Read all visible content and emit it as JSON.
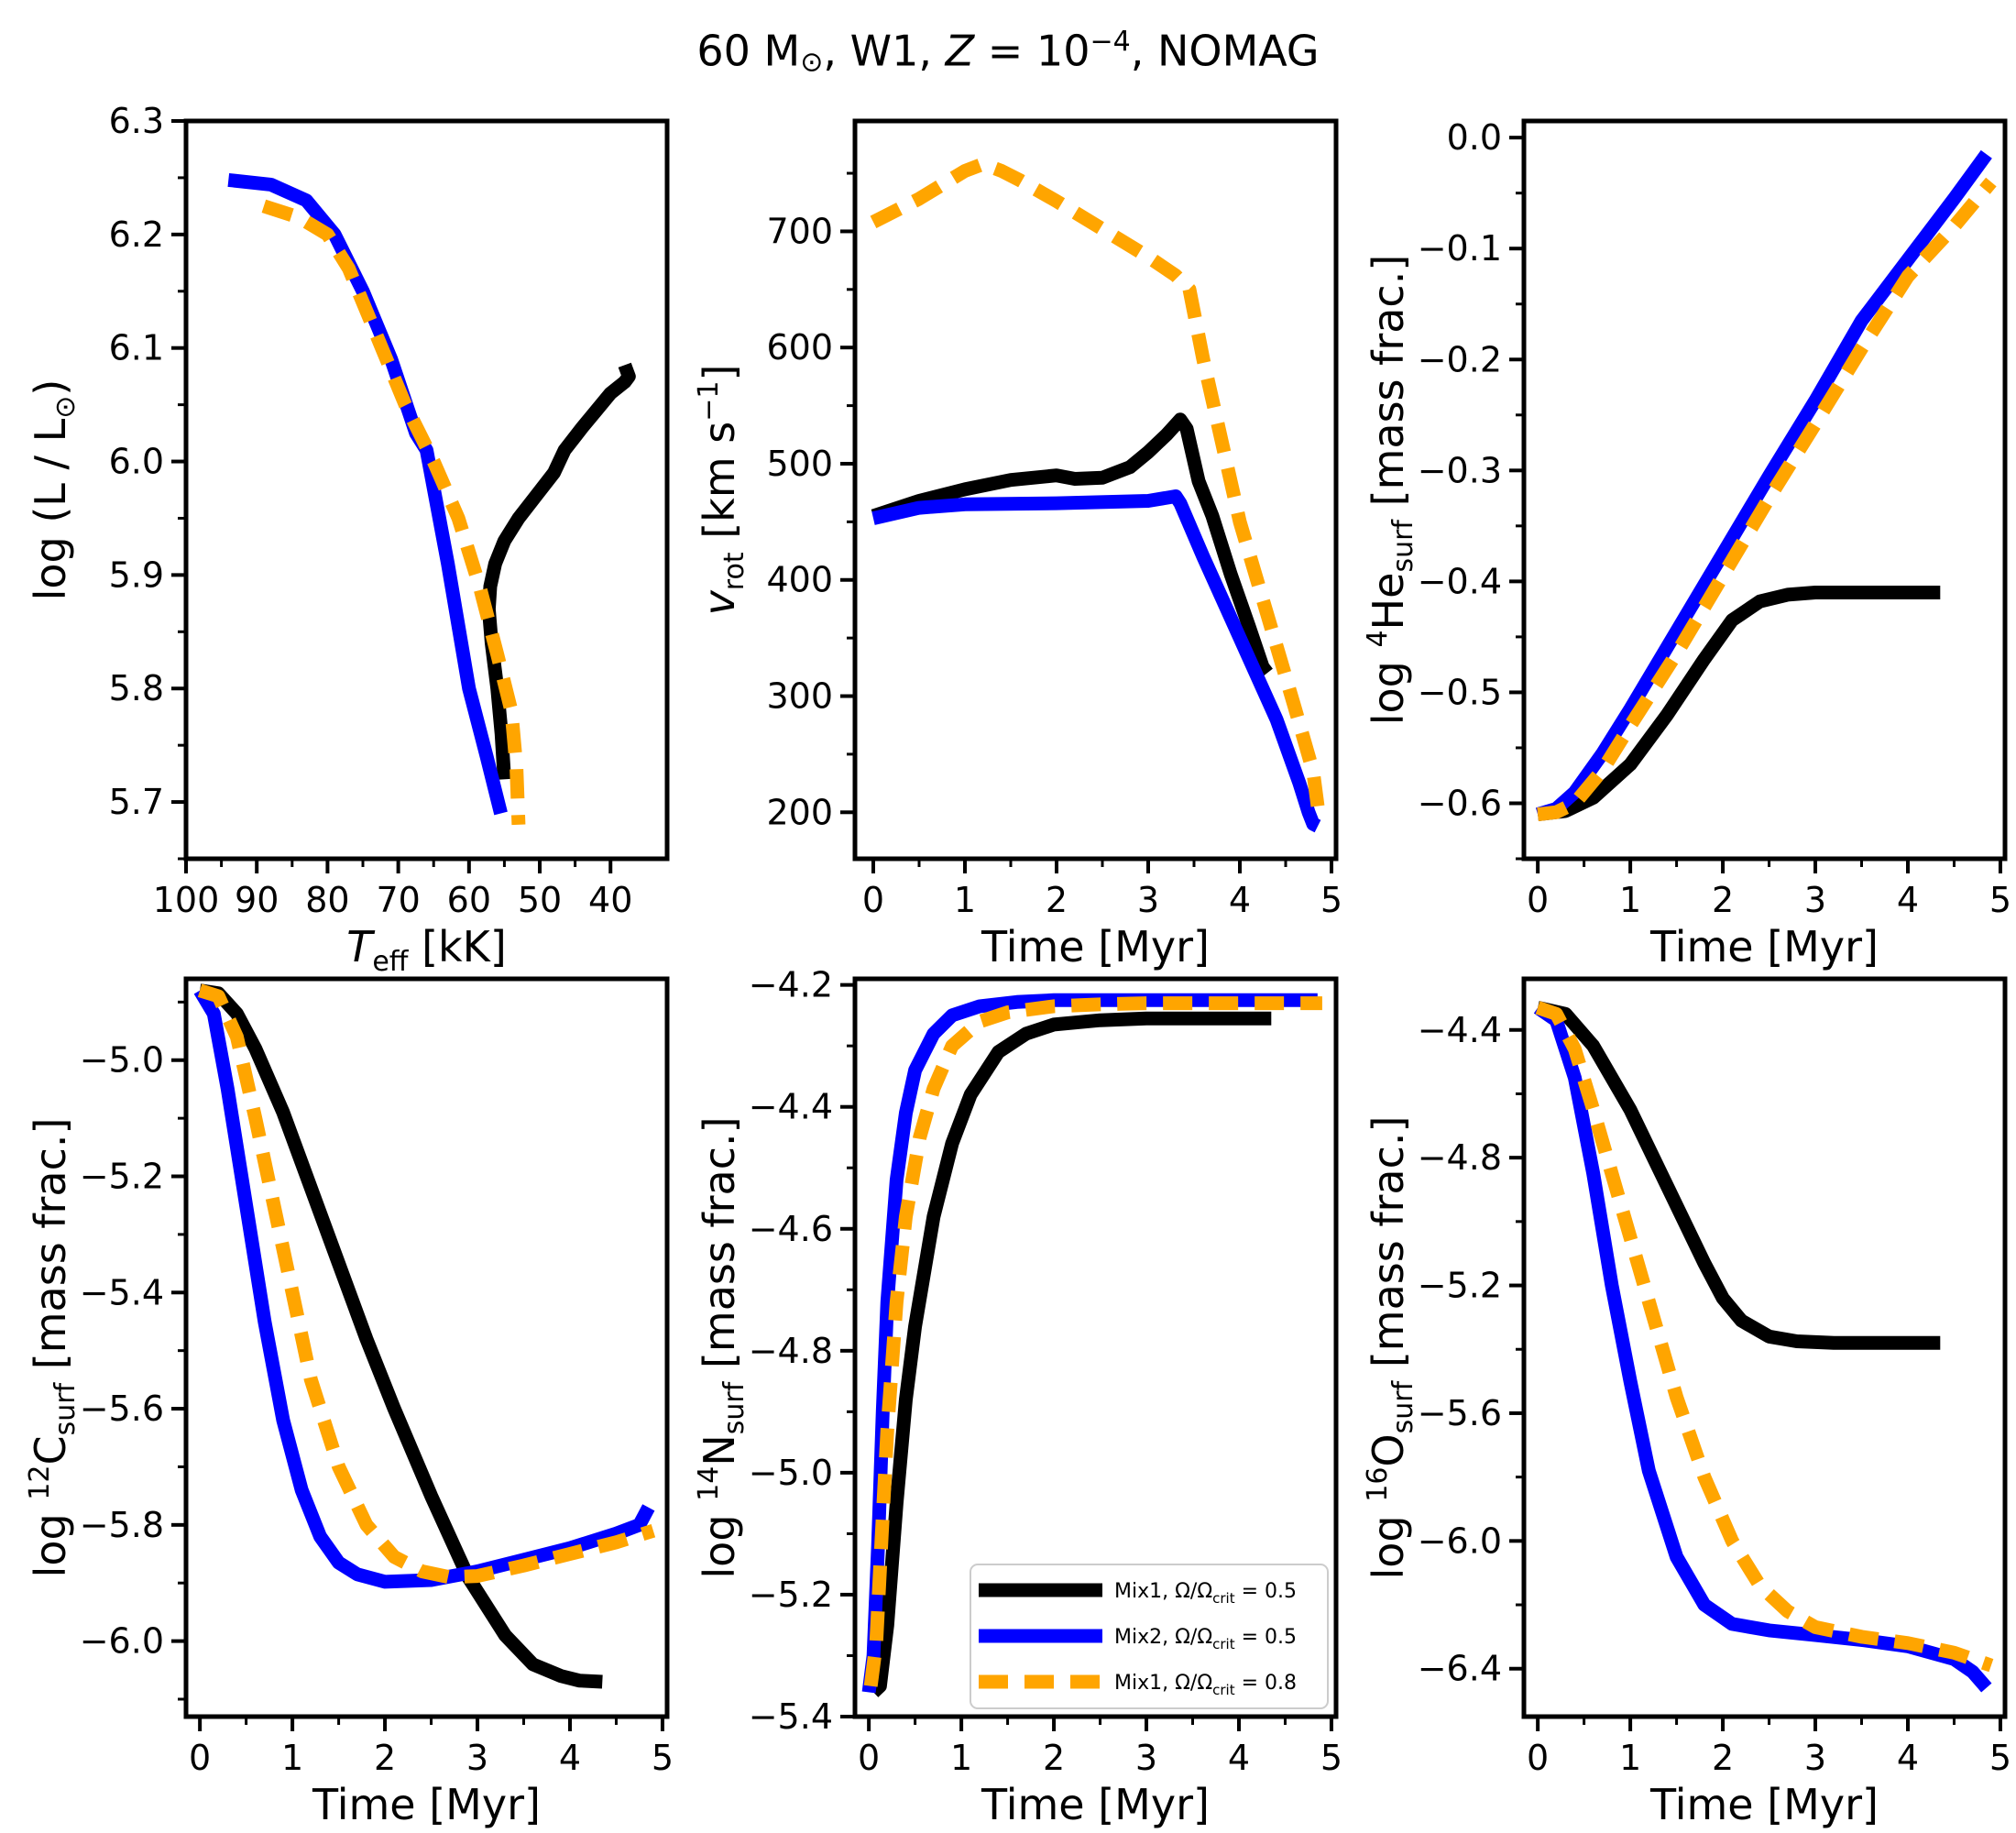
{
  "figure": {
    "title": {
      "text": "60 M",
      "msun": "⊙",
      "rest": ", W1, ",
      "zvar": "Z",
      "zval": " = 10",
      "zexp": "−4",
      "tail": ", NOMAG"
    }
  },
  "colors": {
    "mix1_05": "#000000",
    "mix2_05": "#0000ff",
    "mix1_08": "#ffa500"
  },
  "legend": {
    "placement": "lower-right (panel 5)",
    "entries": [
      {
        "key": "mix1_05",
        "label": "Mix1, Ω/Ω",
        "sub": "crit",
        "tail": " = 0.5",
        "style": "solid"
      },
      {
        "key": "mix2_05",
        "label": "Mix2, Ω/Ω",
        "sub": "crit",
        "tail": " = 0.5",
        "style": "solid"
      },
      {
        "key": "mix1_08",
        "label": "Mix1, Ω/Ω",
        "sub": "crit",
        "tail": " = 0.8",
        "style": "dashed"
      }
    ]
  },
  "chart_data": [
    {
      "type": "line",
      "id": "hrd",
      "xlabel": {
        "main": "T",
        "sub": "eff",
        "tail": " [kK]"
      },
      "ylabel": {
        "main": "log (L / L",
        "sub": "⊙",
        "tail": ")"
      },
      "xlim": [
        100,
        32
      ],
      "ylim": [
        5.65,
        6.3
      ],
      "xticks": [
        100,
        90,
        80,
        70,
        60,
        50,
        40
      ],
      "yticks": [
        5.7,
        5.8,
        5.9,
        6.0,
        6.1,
        6.2,
        6.3
      ],
      "yfmt": 1,
      "series": [
        {
          "key": "mix1_05",
          "x": [
            55.0,
            55.4,
            56.0,
            56.8,
            57.2,
            57.0,
            56.3,
            55.0,
            53.0,
            50.5,
            48.0,
            46.5,
            44.0,
            42.0,
            40.0,
            38.0,
            37.4,
            38.0
          ],
          "y": [
            5.72,
            5.76,
            5.8,
            5.84,
            5.87,
            5.89,
            5.91,
            5.93,
            5.95,
            5.97,
            5.99,
            6.01,
            6.03,
            6.045,
            6.06,
            6.07,
            6.075,
            6.085
          ]
        },
        {
          "key": "mix2_05",
          "x": [
            94.0,
            88.0,
            83.0,
            79.0,
            75.0,
            71.0,
            67.5,
            66.0,
            63.0,
            60.0,
            57.5,
            55.5
          ],
          "y": [
            6.248,
            6.244,
            6.23,
            6.2,
            6.15,
            6.09,
            6.025,
            6.01,
            5.91,
            5.8,
            5.74,
            5.69
          ]
        },
        {
          "key": "mix1_08",
          "x": [
            89.0,
            84.0,
            80.0,
            77.0,
            73.0,
            69.0,
            65.0,
            61.5,
            58.5,
            56.0,
            54.0,
            53.3,
            53.0
          ],
          "y": [
            6.225,
            6.215,
            6.2,
            6.17,
            6.11,
            6.05,
            6.0,
            5.95,
            5.89,
            5.83,
            5.78,
            5.73,
            5.68
          ]
        }
      ]
    },
    {
      "type": "line",
      "id": "vrot",
      "xlabel": {
        "main": "Time [Myr]"
      },
      "ylabel": {
        "main": "v",
        "sub": "rot",
        "tail": " [km s",
        "sup": "−1",
        "tail2": "]"
      },
      "xlim": [
        -0.2,
        5.05
      ],
      "ylim": [
        160,
        795
      ],
      "xticks": [
        0,
        1,
        2,
        3,
        4,
        5
      ],
      "yticks": [
        200,
        300,
        400,
        500,
        600,
        700
      ],
      "yfmt": 0,
      "series": [
        {
          "key": "mix1_05",
          "x": [
            0,
            0.5,
            1.0,
            1.5,
            2.0,
            2.2,
            2.5,
            2.8,
            3.0,
            3.2,
            3.35,
            3.42,
            3.55,
            3.7,
            3.9,
            4.1,
            4.25,
            4.3
          ],
          "y": [
            455,
            468,
            478,
            486,
            490,
            487,
            488,
            497,
            510,
            525,
            538,
            530,
            485,
            455,
            405,
            360,
            325,
            320
          ]
        },
        {
          "key": "mix2_05",
          "x": [
            0,
            0.5,
            1.0,
            2.0,
            3.0,
            3.3,
            3.35,
            3.6,
            4.0,
            4.4,
            4.65,
            4.75,
            4.8,
            4.85
          ],
          "y": [
            453,
            462,
            465,
            466,
            468,
            472,
            466,
            420,
            350,
            280,
            225,
            200,
            190,
            188
          ]
        },
        {
          "key": "mix1_08",
          "x": [
            0,
            0.5,
            1.0,
            1.2,
            1.4,
            1.6,
            2.0,
            2.5,
            3.0,
            3.3,
            3.45,
            3.6,
            3.8,
            4.0,
            4.3,
            4.6,
            4.8,
            4.85,
            4.9
          ],
          "y": [
            708,
            728,
            752,
            758,
            752,
            744,
            726,
            702,
            678,
            662,
            650,
            590,
            520,
            450,
            370,
            290,
            235,
            205,
            198
          ]
        }
      ]
    },
    {
      "type": "line",
      "id": "he4",
      "xlabel": {
        "main": "Time [Myr]"
      },
      "ylabel": {
        "main": "log ",
        "sup": "4",
        "tail": "He",
        "sub": "surf",
        "tail2": " [mass frac.]"
      },
      "xlim": [
        -0.15,
        5.05
      ],
      "ylim": [
        -0.65,
        0.015
      ],
      "xticks": [
        0,
        1,
        2,
        3,
        4,
        5
      ],
      "yticks": [
        -0.6,
        -0.5,
        -0.4,
        -0.3,
        -0.2,
        -0.1,
        0.0
      ],
      "yfmt": 1,
      "series": [
        {
          "key": "mix1_05",
          "x": [
            0,
            0.3,
            0.6,
            1.0,
            1.4,
            1.8,
            2.1,
            2.4,
            2.7,
            3.0,
            3.5,
            4.0,
            4.35
          ],
          "y": [
            -0.61,
            -0.607,
            -0.595,
            -0.565,
            -0.52,
            -0.47,
            -0.435,
            -0.418,
            -0.412,
            -0.41,
            -0.41,
            -0.41,
            -0.41
          ]
        },
        {
          "key": "mix2_05",
          "x": [
            0,
            0.2,
            0.4,
            0.7,
            1.0,
            1.5,
            2.0,
            2.5,
            3.0,
            3.5,
            4.0,
            4.5,
            4.85
          ],
          "y": [
            -0.61,
            -0.605,
            -0.59,
            -0.555,
            -0.515,
            -0.445,
            -0.375,
            -0.305,
            -0.237,
            -0.165,
            -0.11,
            -0.055,
            -0.015
          ]
        },
        {
          "key": "mix1_08",
          "x": [
            0,
            0.2,
            0.4,
            0.7,
            1.0,
            1.5,
            2.0,
            2.5,
            3.0,
            3.5,
            4.0,
            4.5,
            4.9
          ],
          "y": [
            -0.61,
            -0.608,
            -0.6,
            -0.57,
            -0.53,
            -0.465,
            -0.395,
            -0.325,
            -0.258,
            -0.19,
            -0.125,
            -0.08,
            -0.04
          ]
        }
      ]
    },
    {
      "type": "line",
      "id": "c12",
      "xlabel": {
        "main": "Time [Myr]"
      },
      "ylabel": {
        "main": "log ",
        "sup": "12",
        "tail": "C",
        "sub": "surf",
        "tail2": " [mass frac.]"
      },
      "xlim": [
        -0.15,
        5.05
      ],
      "ylim": [
        -6.13,
        -4.86
      ],
      "xticks": [
        0,
        1,
        2,
        3,
        4,
        5
      ],
      "yticks": [
        -6.0,
        -5.8,
        -5.6,
        -5.4,
        -5.2,
        -5.0
      ],
      "yfmt": 1,
      "series": [
        {
          "key": "mix1_05",
          "x": [
            0,
            0.2,
            0.4,
            0.6,
            0.9,
            1.2,
            1.5,
            1.8,
            2.1,
            2.5,
            2.9,
            3.3,
            3.6,
            3.9,
            4.1,
            4.35
          ],
          "y": [
            -4.88,
            -4.885,
            -4.92,
            -4.98,
            -5.09,
            -5.22,
            -5.35,
            -5.48,
            -5.6,
            -5.75,
            -5.89,
            -5.99,
            -6.04,
            -6.06,
            -6.068,
            -6.07
          ]
        },
        {
          "key": "mix2_05",
          "x": [
            0,
            0.15,
            0.3,
            0.5,
            0.7,
            0.9,
            1.1,
            1.3,
            1.5,
            1.7,
            2.0,
            2.5,
            3.0,
            3.5,
            4.0,
            4.5,
            4.75,
            4.85
          ],
          "y": [
            -4.88,
            -4.92,
            -5.05,
            -5.25,
            -5.45,
            -5.62,
            -5.74,
            -5.82,
            -5.865,
            -5.885,
            -5.898,
            -5.895,
            -5.88,
            -5.86,
            -5.84,
            -5.815,
            -5.8,
            -5.77
          ]
        },
        {
          "key": "mix1_08",
          "x": [
            0,
            0.2,
            0.4,
            0.6,
            0.8,
            1.0,
            1.2,
            1.5,
            1.8,
            2.1,
            2.4,
            2.7,
            3.0,
            3.5,
            4.0,
            4.5,
            4.9
          ],
          "y": [
            -4.88,
            -4.89,
            -4.96,
            -5.1,
            -5.25,
            -5.4,
            -5.55,
            -5.7,
            -5.8,
            -5.855,
            -5.88,
            -5.89,
            -5.888,
            -5.87,
            -5.85,
            -5.83,
            -5.81
          ]
        }
      ]
    },
    {
      "type": "line",
      "id": "n14",
      "xlabel": {
        "main": "Time [Myr]"
      },
      "ylabel": {
        "main": "log ",
        "sup": "14",
        "tail": "N",
        "sub": "surf",
        "tail2": " [mass frac.]"
      },
      "xlim": [
        -0.15,
        5.05
      ],
      "ylim": [
        -5.4,
        -4.19
      ],
      "xticks": [
        0,
        1,
        2,
        3,
        4,
        5
      ],
      "yticks": [
        -5.4,
        -5.2,
        -5.0,
        -4.8,
        -4.6,
        -4.4,
        -4.2
      ],
      "yfmt": 1,
      "series": [
        {
          "key": "mix1_05",
          "x": [
            0.05,
            0.12,
            0.2,
            0.3,
            0.4,
            0.5,
            0.7,
            0.9,
            1.1,
            1.4,
            1.7,
            2.0,
            2.5,
            3.0,
            3.5,
            4.0,
            4.35
          ],
          "y": [
            -5.36,
            -5.35,
            -5.25,
            -5.05,
            -4.88,
            -4.76,
            -4.58,
            -4.46,
            -4.38,
            -4.31,
            -4.28,
            -4.265,
            -4.258,
            -4.255,
            -4.255,
            -4.255,
            -4.255
          ]
        },
        {
          "key": "mix2_05",
          "x": [
            0,
            0.05,
            0.1,
            0.15,
            0.2,
            0.3,
            0.4,
            0.5,
            0.7,
            0.9,
            1.2,
            1.6,
            2.0,
            3.0,
            4.0,
            4.85
          ],
          "y": [
            -5.36,
            -5.3,
            -5.12,
            -4.9,
            -4.72,
            -4.52,
            -4.41,
            -4.34,
            -4.28,
            -4.25,
            -4.235,
            -4.228,
            -4.225,
            -4.225,
            -4.225,
            -4.225
          ]
        },
        {
          "key": "mix1_08",
          "x": [
            0.02,
            0.08,
            0.14,
            0.2,
            0.3,
            0.4,
            0.55,
            0.7,
            0.9,
            1.2,
            1.5,
            2.0,
            2.5,
            3.0,
            4.0,
            4.9
          ],
          "y": [
            -5.35,
            -5.28,
            -5.1,
            -4.93,
            -4.72,
            -4.58,
            -4.45,
            -4.37,
            -4.3,
            -4.26,
            -4.245,
            -4.235,
            -4.232,
            -4.23,
            -4.23,
            -4.23
          ]
        }
      ]
    },
    {
      "type": "line",
      "id": "o16",
      "xlabel": {
        "main": "Time [Myr]"
      },
      "ylabel": {
        "main": "log ",
        "sup": "16",
        "tail": "O",
        "sub": "surf",
        "tail2": " [mass frac.]"
      },
      "xlim": [
        -0.15,
        5.05
      ],
      "ylim": [
        -6.55,
        -4.24
      ],
      "xticks": [
        0,
        1,
        2,
        3,
        4,
        5
      ],
      "yticks": [
        -6.4,
        -6.0,
        -5.6,
        -5.2,
        -4.8,
        -4.4
      ],
      "yfmt": 1,
      "series": [
        {
          "key": "mix1_05",
          "x": [
            0,
            0.3,
            0.6,
            1.0,
            1.4,
            1.8,
            2.0,
            2.2,
            2.5,
            2.8,
            3.2,
            3.6,
            4.0,
            4.35
          ],
          "y": [
            -4.33,
            -4.35,
            -4.45,
            -4.65,
            -4.89,
            -5.13,
            -5.24,
            -5.31,
            -5.36,
            -5.375,
            -5.38,
            -5.38,
            -5.38,
            -5.38
          ]
        },
        {
          "key": "mix2_05",
          "x": [
            0,
            0.2,
            0.4,
            0.6,
            0.8,
            1.0,
            1.2,
            1.5,
            1.8,
            2.1,
            2.5,
            3.0,
            3.5,
            4.0,
            4.5,
            4.7,
            4.85
          ],
          "y": [
            -4.33,
            -4.37,
            -4.55,
            -4.85,
            -5.2,
            -5.5,
            -5.78,
            -6.05,
            -6.2,
            -6.26,
            -6.28,
            -6.295,
            -6.31,
            -6.33,
            -6.37,
            -6.41,
            -6.46
          ]
        },
        {
          "key": "mix1_08",
          "x": [
            0,
            0.2,
            0.4,
            0.6,
            0.9,
            1.2,
            1.5,
            1.8,
            2.1,
            2.4,
            2.7,
            3.0,
            3.5,
            4.0,
            4.5,
            4.9
          ],
          "y": [
            -4.33,
            -4.35,
            -4.46,
            -4.65,
            -4.95,
            -5.25,
            -5.55,
            -5.8,
            -6.0,
            -6.14,
            -6.22,
            -6.27,
            -6.3,
            -6.32,
            -6.35,
            -6.39
          ]
        }
      ]
    }
  ]
}
